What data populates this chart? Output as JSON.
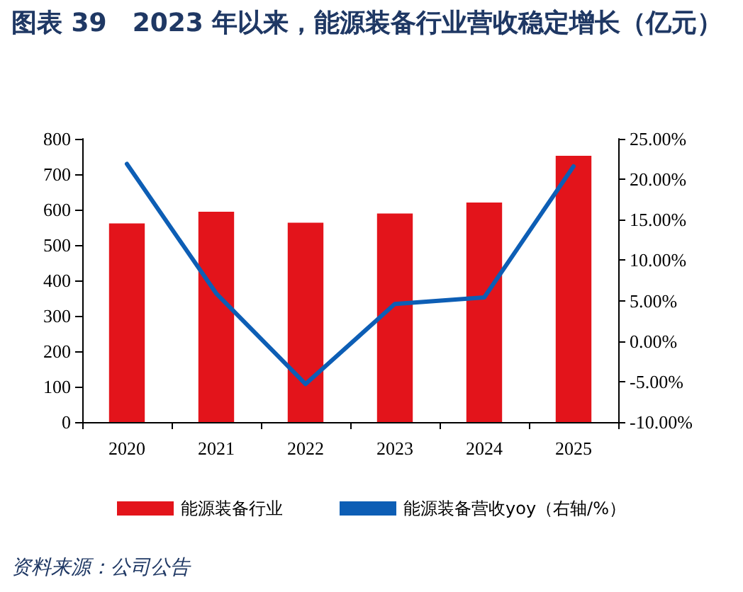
{
  "chart_data": {
    "type": "bar",
    "title": "图表 39　2023 年以来，能源装备行业营收稳定增长（亿元）",
    "categories": [
      "2020",
      "2021",
      "2022",
      "2023",
      "2024",
      "2025"
    ],
    "series": [
      {
        "name": "能源装备行业",
        "color": "#e3141b",
        "values": [
          561,
          594,
          563,
          589,
          620,
          752
        ]
      },
      {
        "name": "能源装备营收yoy（右轴/%）",
        "type": "line",
        "axis": "y2",
        "color": "#0d5eb5",
        "values": [
          21.9,
          5.9,
          -5.3,
          4.6,
          5.4,
          21.6
        ]
      }
    ],
    "ylim": [
      0,
      800
    ],
    "yticks": [
      0,
      100,
      200,
      300,
      400,
      500,
      600,
      700,
      800
    ],
    "y2lim": [
      -10,
      25
    ],
    "y2ticks": [
      {
        "value": -10,
        "label": "-10.00%"
      },
      {
        "value": -5,
        "label": "-5.00%"
      },
      {
        "value": 0,
        "label": "0.00%"
      },
      {
        "value": 5,
        "label": "5.00%"
      },
      {
        "value": 10,
        "label": "10.00%"
      },
      {
        "value": 15,
        "label": "15.00%"
      },
      {
        "value": 20,
        "label": "20.00%"
      },
      {
        "value": 25,
        "label": "25.00%"
      }
    ],
    "grid": false,
    "legend": "bottom",
    "marker": "none",
    "line_style": "solid",
    "annotations": [
      "资料来源：公司公告"
    ]
  }
}
